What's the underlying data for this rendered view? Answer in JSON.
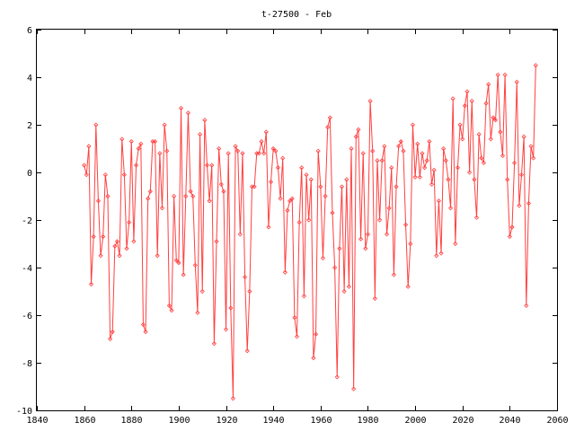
{
  "chart_data": {
    "type": "line",
    "title": "t-27500 - Feb",
    "xlabel": "",
    "ylabel": "",
    "xlim": [
      1840,
      2060
    ],
    "ylim": [
      -10,
      6
    ],
    "xticks": [
      "1840",
      "1860",
      "1880",
      "1900",
      "1920",
      "1940",
      "1960",
      "1980",
      "2000",
      "2020",
      "2040",
      "2060"
    ],
    "yticks": [
      "6",
      "4",
      "2",
      "0",
      "-2",
      "-4",
      "-6",
      "-8",
      "-10"
    ],
    "grid": false,
    "legend": "none",
    "line_color": "#ff4040",
    "marker": "diamond",
    "x_start": 1860,
    "x_step": 1,
    "values": [
      0.3,
      -0.1,
      1.1,
      -4.7,
      -2.7,
      2.0,
      -1.2,
      -3.5,
      -2.7,
      -0.1,
      -1.0,
      -7.0,
      -6.7,
      -3.1,
      -2.9,
      -3.5,
      1.4,
      -0.1,
      -3.2,
      -2.1,
      1.3,
      -2.9,
      0.3,
      1.0,
      1.2,
      -6.4,
      -6.7,
      -1.1,
      -0.8,
      1.3,
      1.3,
      -3.5,
      0.8,
      -1.5,
      2.0,
      0.9,
      -5.6,
      -5.8,
      -1.0,
      -3.7,
      -3.8,
      2.7,
      -4.3,
      -1.0,
      2.5,
      -0.8,
      -1.0,
      -3.9,
      -5.9,
      1.6,
      -5.0,
      2.2,
      0.3,
      -1.2,
      0.3,
      -7.2,
      -2.9,
      1.0,
      -0.5,
      -0.8,
      -6.6,
      0.8,
      -5.7,
      -9.5,
      1.1,
      0.9,
      -2.6,
      0.8,
      -4.4,
      -7.5,
      -5.0,
      -0.6,
      -0.6,
      0.8,
      0.8,
      1.3,
      0.8,
      1.7,
      -2.3,
      -0.4,
      1.0,
      0.9,
      0.2,
      -1.1,
      0.6,
      -4.2,
      -1.6,
      -1.2,
      -1.1,
      -6.1,
      -6.9,
      -2.1,
      0.2,
      -5.2,
      -0.1,
      -2.0,
      -0.3,
      -7.8,
      -6.8,
      0.9,
      -0.6,
      -3.6,
      -1.0,
      1.9,
      2.3,
      -1.7,
      -4.0,
      -8.6,
      -3.2,
      -0.6,
      -5.0,
      -0.3,
      -4.8,
      1.0,
      -9.1,
      1.5,
      1.8,
      -2.8,
      0.8,
      -3.2,
      -2.6,
      3.0,
      0.9,
      -5.3,
      0.5,
      -2.0,
      0.5,
      1.1,
      -2.6,
      -1.5,
      0.2,
      -4.3,
      -0.6,
      1.1,
      1.3,
      0.9,
      -2.2,
      -4.8,
      -3.0,
      2.0,
      -0.2,
      1.2,
      -0.2,
      0.8,
      0.2,
      0.5,
      1.3,
      -0.5,
      0.1,
      -3.5,
      -1.2,
      -3.4,
      1.0,
      0.5,
      -0.3,
      -1.5,
      3.1,
      -3.0,
      0.2,
      2.0,
      1.4,
      2.8,
      3.4,
      0.0,
      3.0,
      -0.3,
      -1.9,
      1.6,
      0.6,
      0.4,
      2.9,
      3.7,
      1.4,
      2.3,
      2.2,
      4.1,
      1.7,
      0.7,
      4.1,
      -0.3,
      -2.7,
      -2.3,
      0.4,
      3.8,
      -1.4,
      -0.1,
      1.5,
      -5.6,
      -1.3,
      1.1,
      0.6,
      4.5
    ]
  }
}
